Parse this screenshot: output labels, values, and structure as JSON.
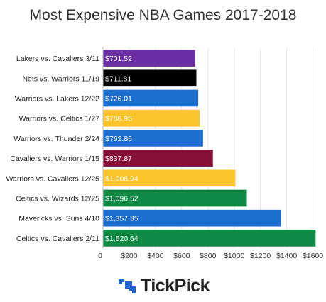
{
  "chart_data": {
    "type": "bar",
    "orientation": "horizontal",
    "title": "Most Expensive NBA Games 2017-2018",
    "xlabel": "",
    "ylabel": "",
    "xlim": [
      0,
      1700
    ],
    "xticks": [
      0,
      200,
      400,
      600,
      800,
      1000,
      1200,
      1400,
      1600
    ],
    "xtick_labels": [
      "0",
      "$200",
      "$400",
      "$600",
      "$800",
      "$1000",
      "$1200",
      "$1400",
      "$1600"
    ],
    "grid": "vertical",
    "legend": "none",
    "categories": [
      "Lakers vs. Cavaliers 3/11",
      "Nets vs. Warriors 11/19",
      "Warriors vs. Lakers 12/22",
      "Warriors vs. Celtics 1/27",
      "Warriors vs. Thunder 2/24",
      "Cavaliers vs. Warriors 1/15",
      "Warriors vs. Cavaliers 12/25",
      "Celtics vs. Wizards 12/25",
      "Mavericks vs. Suns 4/10",
      "Celtics vs. Cavaliers 2/11"
    ],
    "values": [
      701.52,
      711.81,
      726.01,
      736.95,
      762.86,
      837.87,
      1008.94,
      1096.52,
      1357.35,
      1620.64
    ],
    "value_labels": [
      "$701.52",
      "$711.81",
      "$726.01",
      "$736.95",
      "$762.86",
      "$837.87",
      "$1,008.94",
      "$1,096.52",
      "$1,357.35",
      "$1,620.64"
    ],
    "colors": [
      "#6a2fa3",
      "#000000",
      "#1d6fcf",
      "#fbc52a",
      "#1d6fcf",
      "#861038",
      "#fbc52a",
      "#0f8a44",
      "#1d6fcf",
      "#0f8a44"
    ]
  },
  "brand": {
    "name": "TickPick",
    "icon": "tickpick-logo-icon",
    "icon_color": "#1e64d0"
  }
}
